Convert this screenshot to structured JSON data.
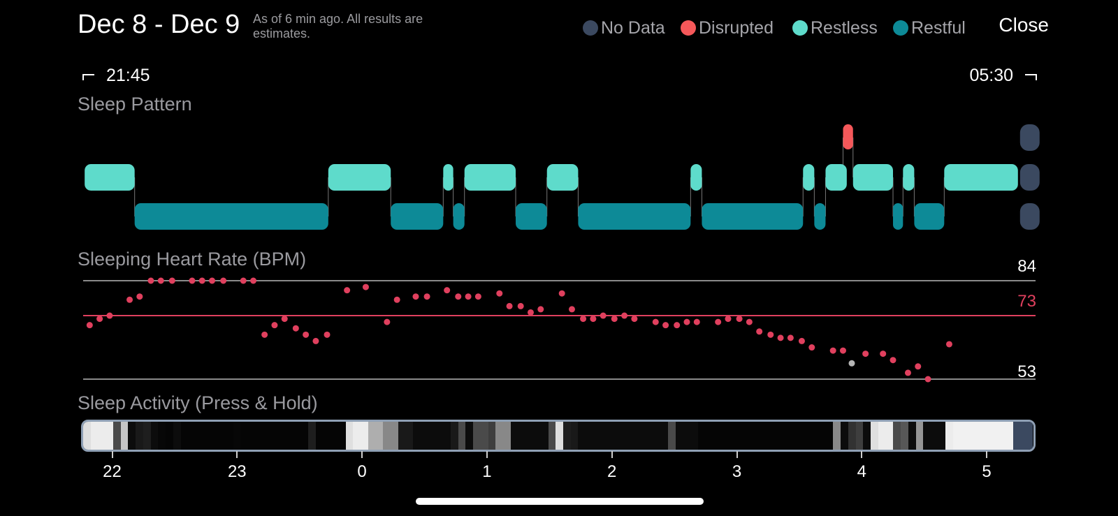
{
  "header": {
    "title": "Dec 8 - Dec 9",
    "subtitle": "As of 6 min ago. All results are estimates.",
    "close_label": "Close"
  },
  "legend": [
    {
      "label": "No Data",
      "color": "#3b4960"
    },
    {
      "label": "Disrupted",
      "color": "#f5585a"
    },
    {
      "label": "Restless",
      "color": "#5edbcb"
    },
    {
      "label": "Restful",
      "color": "#0d8a97"
    }
  ],
  "range": {
    "start": "21:45",
    "end": "05:30"
  },
  "sleep_pattern": {
    "title": "Sleep Pattern",
    "segments": [
      {
        "state": "restless",
        "start": 21.78,
        "end": 22.18
      },
      {
        "state": "restful",
        "start": 22.18,
        "end": 23.73
      },
      {
        "state": "restless",
        "start": 23.73,
        "end": 24.23
      },
      {
        "state": "restful",
        "start": 24.23,
        "end": 24.65
      },
      {
        "state": "restless",
        "start": 24.65,
        "end": 24.73
      },
      {
        "state": "restful",
        "start": 24.73,
        "end": 24.82
      },
      {
        "state": "restless",
        "start": 24.82,
        "end": 25.23
      },
      {
        "state": "restful",
        "start": 25.23,
        "end": 25.48
      },
      {
        "state": "restless",
        "start": 25.48,
        "end": 25.73
      },
      {
        "state": "restful",
        "start": 25.73,
        "end": 26.63
      },
      {
        "state": "restless",
        "start": 26.63,
        "end": 26.72
      },
      {
        "state": "restful",
        "start": 26.72,
        "end": 27.53
      },
      {
        "state": "restless",
        "start": 27.53,
        "end": 27.62
      },
      {
        "state": "restful",
        "start": 27.62,
        "end": 27.71
      },
      {
        "state": "restless",
        "start": 27.71,
        "end": 27.88
      },
      {
        "state": "disrupted",
        "start": 27.85,
        "end": 27.93
      },
      {
        "state": "restless",
        "start": 27.93,
        "end": 28.25
      },
      {
        "state": "restful",
        "start": 28.25,
        "end": 28.33
      },
      {
        "state": "restless",
        "start": 28.33,
        "end": 28.42
      },
      {
        "state": "restful",
        "start": 28.42,
        "end": 28.66
      },
      {
        "state": "restless",
        "start": 28.66,
        "end": 29.25
      },
      {
        "state": "nodata",
        "start": 29.25,
        "end": 29.42
      }
    ]
  },
  "heart_rate": {
    "title": "Sleeping Heart Rate (BPM)",
    "max_label": "84",
    "avg_label": "73",
    "min_label": "53",
    "max": 84,
    "avg": 73,
    "min": 53,
    "avg_color": "#e0405e",
    "dot_color": "#e0405e",
    "points": [
      [
        21.82,
        70
      ],
      [
        21.9,
        72
      ],
      [
        21.98,
        73
      ],
      [
        22.14,
        78
      ],
      [
        22.22,
        79
      ],
      [
        22.31,
        84
      ],
      [
        22.39,
        84
      ],
      [
        22.48,
        84
      ],
      [
        22.64,
        84
      ],
      [
        22.72,
        84
      ],
      [
        22.8,
        84
      ],
      [
        22.89,
        84
      ],
      [
        23.05,
        84
      ],
      [
        23.13,
        84
      ],
      [
        23.22,
        67
      ],
      [
        23.3,
        70
      ],
      [
        23.38,
        72
      ],
      [
        23.47,
        69
      ],
      [
        23.55,
        67
      ],
      [
        23.63,
        65
      ],
      [
        23.72,
        67
      ],
      [
        23.88,
        81
      ],
      [
        24.03,
        82
      ],
      [
        24.2,
        71
      ],
      [
        24.28,
        78
      ],
      [
        24.43,
        79
      ],
      [
        24.52,
        79
      ],
      [
        24.68,
        81
      ],
      [
        24.77,
        79
      ],
      [
        24.85,
        79
      ],
      [
        24.93,
        79
      ],
      [
        25.1,
        80
      ],
      [
        25.18,
        76
      ],
      [
        25.27,
        76
      ],
      [
        25.35,
        74
      ],
      [
        25.43,
        75
      ],
      [
        25.6,
        80
      ],
      [
        25.68,
        75
      ],
      [
        25.77,
        72
      ],
      [
        25.85,
        72
      ],
      [
        25.93,
        73
      ],
      [
        26.02,
        72
      ],
      [
        26.1,
        73
      ],
      [
        26.18,
        72
      ],
      [
        26.35,
        71
      ],
      [
        26.43,
        70
      ],
      [
        26.52,
        70
      ],
      [
        26.6,
        71
      ],
      [
        26.68,
        71
      ],
      [
        26.85,
        71
      ],
      [
        26.93,
        72
      ],
      [
        27.02,
        72
      ],
      [
        27.1,
        71
      ],
      [
        27.18,
        68
      ],
      [
        27.27,
        67
      ],
      [
        27.35,
        66
      ],
      [
        27.43,
        66
      ],
      [
        27.52,
        65
      ],
      [
        27.6,
        63
      ],
      [
        27.77,
        62
      ],
      [
        27.85,
        62
      ],
      [
        28.03,
        61
      ],
      [
        28.17,
        61
      ],
      [
        28.25,
        59
      ],
      [
        28.37,
        55
      ],
      [
        28.45,
        57
      ],
      [
        28.53,
        53
      ],
      [
        28.7,
        64
      ]
    ],
    "gray_point": [
      27.92,
      58
    ]
  },
  "sleep_activity": {
    "title": "Sleep Activity (Press & Hold)",
    "levels": [
      0.9,
      0.95,
      0.95,
      0.95,
      0.3,
      0.8,
      0.05,
      0.1,
      0.12,
      0.05,
      0.03,
      0.02,
      0.05,
      0.02,
      0.02,
      0.02,
      0.02,
      0.02,
      0.02,
      0.02,
      0.03,
      0.02,
      0.02,
      0.02,
      0.02,
      0.02,
      0.02,
      0.02,
      0.02,
      0.02,
      0.12,
      0.02,
      0.02,
      0.02,
      0.02,
      0.9,
      0.95,
      0.95,
      0.7,
      0.7,
      0.55,
      0.55,
      0.1,
      0.1,
      0.05,
      0.05,
      0.05,
      0.05,
      0.05,
      0.1,
      0.3,
      0.05,
      0.3,
      0.3,
      0.25,
      0.55,
      0.55,
      0.05,
      0.05,
      0.05,
      0.05,
      0.05,
      0.3,
      0.9,
      0.12,
      0.1,
      0.05,
      0.05,
      0.05,
      0.05,
      0.05,
      0.05,
      0.05,
      0.05,
      0.05,
      0.05,
      0.05,
      0.05,
      0.3,
      0.05,
      0.05,
      0.05,
      0.02,
      0.02,
      0.02,
      0.02,
      0.02,
      0.02,
      0.02,
      0.02,
      0.02,
      0.02,
      0.02,
      0.02,
      0.02,
      0.02,
      0.02,
      0.02,
      0.02,
      0.02,
      0.55,
      0.05,
      0.2,
      0.25,
      0.05,
      0.9,
      0.95,
      0.95,
      0.3,
      0.35,
      0.05,
      0.6,
      0.05,
      0.05,
      0.05,
      0.95,
      0.97,
      0.97,
      0.97,
      0.97,
      0.97,
      0.97,
      0.97,
      0.97
    ]
  },
  "axis": {
    "ticks": [
      {
        "label": "22",
        "hour": 22
      },
      {
        "label": "23",
        "hour": 23
      },
      {
        "label": "0",
        "hour": 24
      },
      {
        "label": "1",
        "hour": 25
      },
      {
        "label": "2",
        "hour": 26
      },
      {
        "label": "3",
        "hour": 27
      },
      {
        "label": "4",
        "hour": 28
      },
      {
        "label": "5",
        "hour": 29
      }
    ]
  }
}
